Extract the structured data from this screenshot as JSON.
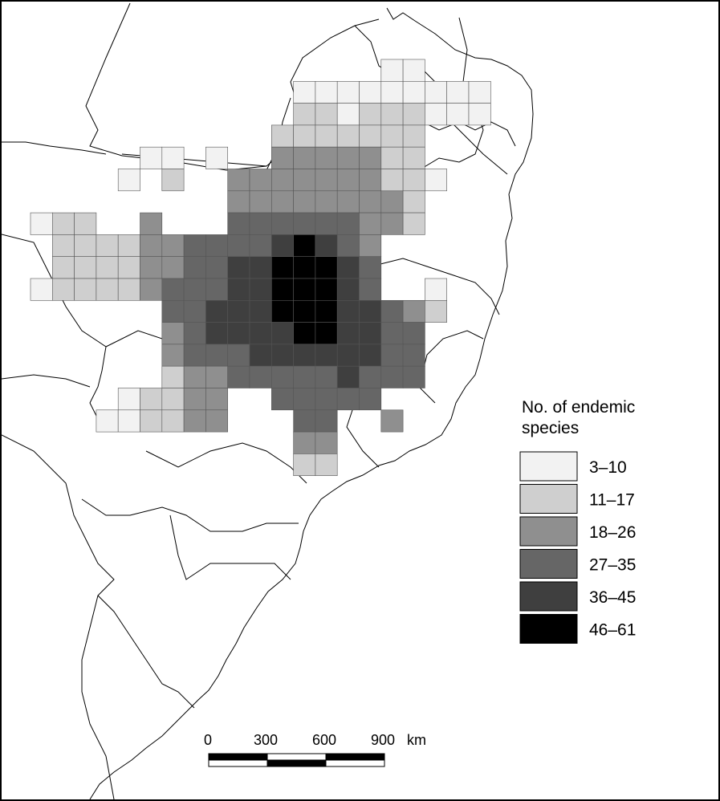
{
  "legend": {
    "title_line1": "No. of endemic",
    "title_line2": "species",
    "classes": [
      {
        "label": "3–10",
        "color": "#f2f2f2"
      },
      {
        "label": "11–17",
        "color": "#cfcfcf"
      },
      {
        "label": "18–26",
        "color": "#8f8f8f"
      },
      {
        "label": "27–35",
        "color": "#666666"
      },
      {
        "label": "36–45",
        "color": "#3f3f3f"
      },
      {
        "label": "46–61",
        "color": "#000000"
      }
    ]
  },
  "scale_bar": {
    "ticks": [
      "0",
      "300",
      "600",
      "900"
    ],
    "unit": "km"
  },
  "grid": {
    "rows": [
      {
        "r": 0,
        "cells": [
          [
            16,
            1
          ],
          [
            17,
            1
          ]
        ]
      },
      {
        "r": 1,
        "cells": [
          [
            12,
            1
          ],
          [
            13,
            1
          ],
          [
            14,
            1
          ],
          [
            15,
            1
          ],
          [
            16,
            1
          ],
          [
            17,
            1
          ],
          [
            18,
            1
          ],
          [
            19,
            1
          ],
          [
            20,
            1
          ]
        ]
      },
      {
        "r": 2,
        "cells": [
          [
            12,
            2
          ],
          [
            13,
            2
          ],
          [
            14,
            1
          ],
          [
            15,
            2
          ],
          [
            16,
            2
          ],
          [
            17,
            2
          ],
          [
            18,
            1
          ],
          [
            19,
            1
          ],
          [
            20,
            1
          ]
        ]
      },
      {
        "r": 3,
        "cells": [
          [
            11,
            2
          ],
          [
            12,
            2
          ],
          [
            13,
            2
          ],
          [
            14,
            2
          ],
          [
            15,
            2
          ],
          [
            16,
            2
          ],
          [
            17,
            2
          ]
        ]
      },
      {
        "r": 4,
        "cells": [
          [
            5,
            1
          ],
          [
            6,
            1
          ],
          [
            8,
            1
          ],
          [
            11,
            3
          ],
          [
            12,
            3
          ],
          [
            13,
            3
          ],
          [
            14,
            3
          ],
          [
            15,
            3
          ],
          [
            16,
            2
          ],
          [
            17,
            2
          ]
        ]
      },
      {
        "r": 5,
        "cells": [
          [
            4,
            1
          ],
          [
            6,
            2
          ],
          [
            9,
            3
          ],
          [
            10,
            3
          ],
          [
            11,
            3
          ],
          [
            12,
            3
          ],
          [
            13,
            3
          ],
          [
            14,
            3
          ],
          [
            15,
            3
          ],
          [
            16,
            2
          ],
          [
            17,
            2
          ],
          [
            18,
            1
          ]
        ]
      },
      {
        "r": 6,
        "cells": [
          [
            9,
            3
          ],
          [
            10,
            3
          ],
          [
            11,
            3
          ],
          [
            12,
            3
          ],
          [
            13,
            3
          ],
          [
            14,
            3
          ],
          [
            15,
            3
          ],
          [
            16,
            3
          ],
          [
            17,
            2
          ]
        ]
      },
      {
        "r": 7,
        "cells": [
          [
            0,
            1
          ],
          [
            1,
            2
          ],
          [
            2,
            2
          ],
          [
            5,
            3
          ],
          [
            9,
            4
          ],
          [
            10,
            4
          ],
          [
            11,
            4
          ],
          [
            12,
            4
          ],
          [
            13,
            4
          ],
          [
            14,
            4
          ],
          [
            15,
            3
          ],
          [
            16,
            3
          ],
          [
            17,
            2
          ]
        ]
      },
      {
        "r": 8,
        "cells": [
          [
            1,
            2
          ],
          [
            2,
            2
          ],
          [
            3,
            2
          ],
          [
            4,
            2
          ],
          [
            5,
            3
          ],
          [
            6,
            3
          ],
          [
            7,
            4
          ],
          [
            8,
            4
          ],
          [
            9,
            4
          ],
          [
            10,
            4
          ],
          [
            11,
            5
          ],
          [
            12,
            6
          ],
          [
            13,
            5
          ],
          [
            14,
            4
          ],
          [
            15,
            3
          ]
        ]
      },
      {
        "r": 9,
        "cells": [
          [
            1,
            2
          ],
          [
            2,
            2
          ],
          [
            3,
            2
          ],
          [
            4,
            2
          ],
          [
            5,
            3
          ],
          [
            6,
            3
          ],
          [
            7,
            4
          ],
          [
            8,
            4
          ],
          [
            9,
            5
          ],
          [
            10,
            5
          ],
          [
            11,
            6
          ],
          [
            12,
            6
          ],
          [
            13,
            6
          ],
          [
            14,
            5
          ],
          [
            15,
            4
          ]
        ]
      },
      {
        "r": 10,
        "cells": [
          [
            0,
            1
          ],
          [
            1,
            2
          ],
          [
            2,
            2
          ],
          [
            3,
            2
          ],
          [
            4,
            2
          ],
          [
            5,
            3
          ],
          [
            6,
            4
          ],
          [
            7,
            4
          ],
          [
            8,
            4
          ],
          [
            9,
            5
          ],
          [
            10,
            5
          ],
          [
            11,
            6
          ],
          [
            12,
            6
          ],
          [
            13,
            6
          ],
          [
            14,
            5
          ],
          [
            15,
            4
          ],
          [
            18,
            1
          ]
        ]
      },
      {
        "r": 11,
        "cells": [
          [
            6,
            4
          ],
          [
            7,
            4
          ],
          [
            8,
            5
          ],
          [
            9,
            5
          ],
          [
            10,
            5
          ],
          [
            11,
            6
          ],
          [
            12,
            6
          ],
          [
            13,
            6
          ],
          [
            14,
            5
          ],
          [
            15,
            5
          ],
          [
            16,
            4
          ],
          [
            17,
            3
          ],
          [
            18,
            2
          ]
        ]
      },
      {
        "r": 12,
        "cells": [
          [
            6,
            3
          ],
          [
            7,
            4
          ],
          [
            8,
            5
          ],
          [
            9,
            5
          ],
          [
            10,
            5
          ],
          [
            11,
            5
          ],
          [
            12,
            6
          ],
          [
            13,
            6
          ],
          [
            14,
            5
          ],
          [
            15,
            5
          ],
          [
            16,
            4
          ],
          [
            17,
            4
          ]
        ]
      },
      {
        "r": 13,
        "cells": [
          [
            6,
            3
          ],
          [
            7,
            4
          ],
          [
            8,
            4
          ],
          [
            9,
            4
          ],
          [
            10,
            5
          ],
          [
            11,
            5
          ],
          [
            12,
            5
          ],
          [
            13,
            5
          ],
          [
            14,
            5
          ],
          [
            15,
            5
          ],
          [
            16,
            4
          ],
          [
            17,
            4
          ]
        ]
      },
      {
        "r": 14,
        "cells": [
          [
            6,
            2
          ],
          [
            7,
            3
          ],
          [
            8,
            3
          ],
          [
            9,
            4
          ],
          [
            10,
            4
          ],
          [
            11,
            4
          ],
          [
            12,
            4
          ],
          [
            13,
            4
          ],
          [
            14,
            5
          ],
          [
            15,
            4
          ],
          [
            16,
            4
          ],
          [
            17,
            4
          ]
        ]
      },
      {
        "r": 15,
        "cells": [
          [
            4,
            1
          ],
          [
            5,
            2
          ],
          [
            6,
            2
          ],
          [
            7,
            3
          ],
          [
            8,
            3
          ],
          [
            11,
            4
          ],
          [
            12,
            4
          ],
          [
            13,
            4
          ],
          [
            14,
            4
          ],
          [
            15,
            4
          ]
        ]
      },
      {
        "r": 16,
        "cells": [
          [
            3,
            1
          ],
          [
            4,
            1
          ],
          [
            5,
            2
          ],
          [
            6,
            2
          ],
          [
            7,
            3
          ],
          [
            8,
            3
          ],
          [
            12,
            4
          ],
          [
            13,
            4
          ],
          [
            16,
            3
          ]
        ]
      },
      {
        "r": 17,
        "cells": [
          [
            12,
            3
          ],
          [
            13,
            3
          ]
        ]
      },
      {
        "r": 18,
        "cells": [
          [
            12,
            2
          ],
          [
            13,
            2
          ]
        ]
      }
    ]
  }
}
